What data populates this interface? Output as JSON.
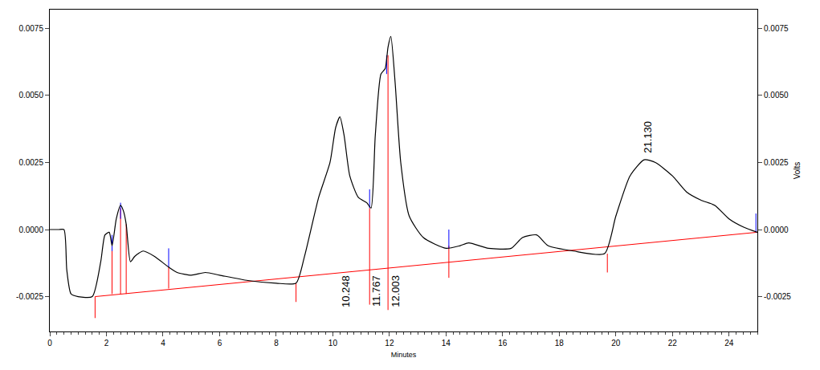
{
  "chart_data": {
    "type": "line",
    "x_label": "Minutes",
    "y2_label": "Volts",
    "color": "#000000",
    "x": [
      0,
      0.3,
      0.5,
      0.6,
      0.75,
      1.0,
      1.5,
      1.8,
      1.95,
      2.1,
      2.2,
      2.35,
      2.5,
      2.6,
      2.7,
      2.85,
      3.0,
      3.3,
      3.7,
      4.2,
      4.5,
      5.0,
      5.5,
      6.0,
      7.0,
      8.0,
      8.7,
      9.0,
      9.5,
      9.9,
      10.1,
      10.25,
      10.4,
      10.6,
      10.9,
      11.2,
      11.35,
      11.5,
      11.7,
      11.85,
      11.95,
      12.05,
      12.2,
      12.4,
      12.7,
      13.2,
      14.0,
      14.5,
      14.8,
      15.5,
      16.3,
      16.7,
      17.2,
      17.6,
      18.5,
      19.6,
      20.0,
      20.5,
      21.0,
      21.4,
      22.0,
      22.5,
      23.0,
      23.5,
      24.0,
      24.5,
      25
    ],
    "values": [
      0,
      0,
      0,
      -0.0015,
      -0.0024,
      -0.0025,
      -0.0025,
      -0.0012,
      -0.0002,
      -0.0001,
      -0.0006,
      0.0004,
      0.0009,
      0.0007,
      0.0002,
      -0.0012,
      -0.001,
      -0.0008,
      -0.001,
      -0.0014,
      -0.0016,
      -0.0017,
      -0.0016,
      -0.0017,
      -0.0019,
      -0.002,
      -0.002,
      -0.001,
      0.0012,
      0.0025,
      0.0038,
      0.0042,
      0.0035,
      0.002,
      0.0012,
      0.001,
      0.0008,
      0.0035,
      0.0058,
      0.006,
      0.0068,
      0.0072,
      0.0055,
      0.0025,
      0.0005,
      -0.0003,
      -0.0007,
      -0.0006,
      -0.0005,
      -0.0007,
      -0.0007,
      -0.0003,
      -0.0002,
      -0.0006,
      -0.0008,
      -0.0009,
      0.0005,
      0.002,
      0.0026,
      0.0025,
      0.002,
      0.0014,
      0.0011,
      0.0009,
      0.0004,
      0.0001,
      -0.0001
    ],
    "xlim": [
      0,
      25
    ],
    "xticks": [
      0,
      2,
      4,
      6,
      8,
      10,
      12,
      14,
      16,
      18,
      20,
      22,
      24
    ],
    "ylim": [
      -0.0038,
      0.0082
    ],
    "yticks": [
      -0.0025,
      {
        "value": 0,
        "label": "0.0000"
      },
      0.0025,
      {
        "value": 0.005,
        "label": "0.0050"
      },
      0.0075
    ],
    "y2lim": [
      -0.0038,
      0.0082
    ],
    "y2ticks": [
      -0.0025,
      {
        "value": 0,
        "label": "0.0000"
      },
      0.0025,
      {
        "value": 0.005,
        "label": "0.0050"
      },
      0.0075
    ],
    "peaks": [
      {
        "x": 10.248,
        "y": 0.0042,
        "label": "10.248"
      },
      {
        "x": 11.767,
        "y": 0.0058,
        "label": "11.767"
      },
      {
        "x": 12.003,
        "y": 0.0072,
        "label": "12.003"
      },
      {
        "x": 21.13,
        "y": 0.0026,
        "label": "21.130"
      }
    ],
    "baseline": {
      "x": [
        1.6,
        25
      ],
      "values": [
        -0.0025,
        -0.0001
      ],
      "color": "#ff0000"
    },
    "drop_lines": {
      "color": "#ff0000",
      "x": [
        1.6,
        2.2,
        2.5,
        2.7,
        4.2,
        8.7,
        11.3,
        11.95,
        14.1,
        19.7
      ],
      "bottom": [
        -0.0033,
        -0.0024,
        -0.0024,
        -0.0024,
        -0.0022,
        -0.0027,
        -0.0028,
        -0.003,
        -0.0018,
        -0.0016
      ],
      "top": [
        -0.0025,
        -0.0005,
        0.0008,
        0.0002,
        -0.0014,
        -0.002,
        0.0008,
        0.0065,
        -0.0006,
        -0.0009
      ]
    },
    "start_marks": {
      "color": "#0000ff",
      "x": [
        2.2,
        2.5,
        4.2,
        11.3,
        11.9,
        14.1,
        24.95
      ],
      "bottom": [
        -0.0008,
        0.0004,
        -0.0014,
        0.0008,
        0.0058,
        -0.0007,
        -0.0001
      ],
      "top": [
        -0.0002,
        0.001,
        -0.0007,
        0.0015,
        0.0065,
        0.0,
        0.0006
      ]
    }
  }
}
